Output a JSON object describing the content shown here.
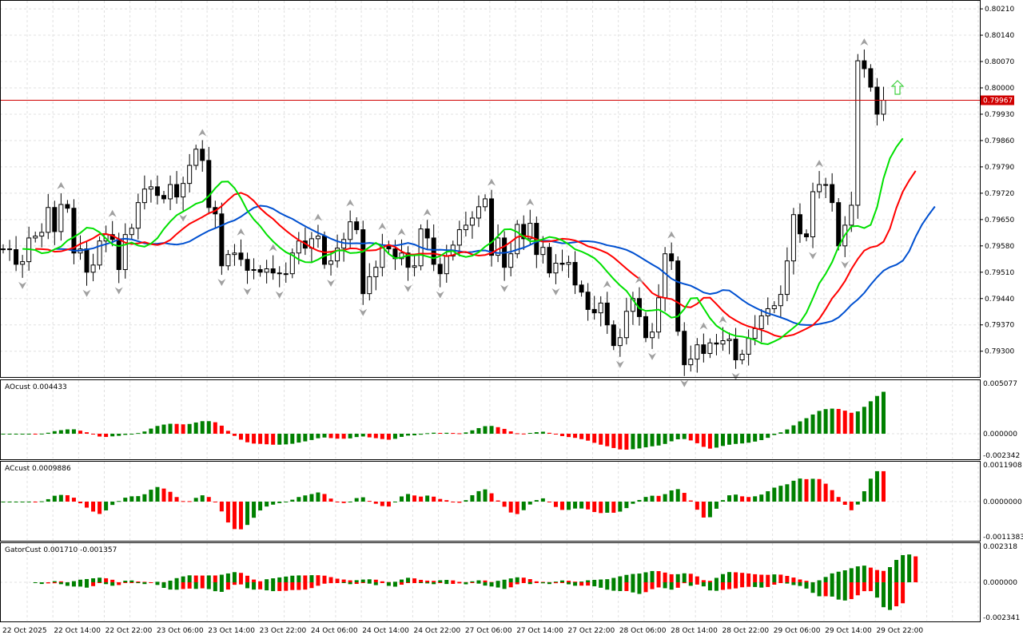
{
  "chart_data": {
    "type": "candlestick",
    "timeframe_bars": "hourly",
    "time_labels": [
      "22 Oct 2025",
      "22 Oct 14:00",
      "22 Oct 22:00",
      "23 Oct 06:00",
      "23 Oct 14:00",
      "23 Oct 22:00",
      "24 Oct 06:00",
      "24 Oct 14:00",
      "24 Oct 22:00",
      "27 Oct 06:00",
      "27 Oct 14:00",
      "27 Oct 22:00",
      "28 Oct 06:00",
      "28 Oct 14:00",
      "28 Oct 22:00",
      "29 Oct 06:00",
      "29 Oct 14:00",
      "29 Oct 22:00"
    ],
    "price_ticks": [
      "0.80210",
      "0.80140",
      "0.80070",
      "0.80000",
      "0.79930",
      "0.79860",
      "0.79790",
      "0.79720",
      "0.79650",
      "0.79580",
      "0.79510",
      "0.79440",
      "0.79370",
      "0.79300"
    ],
    "ylim": [
      0.7923,
      0.80232
    ],
    "grid": true,
    "current_price": "0.79967",
    "colors": {
      "up_bar": "#ffffff",
      "down_bar": "#000000",
      "lips": "#00e000",
      "teeth": "#ff0000",
      "jaw": "#0050d0",
      "bid_line": "#d00000",
      "ind_up": "#008000",
      "ind_down": "#ff0000",
      "grid": "#e0e0e0",
      "fractal": "#a0a0a0",
      "signal_arrow": "#40d040"
    },
    "close": [
      0.79572,
      0.7957,
      0.79531,
      0.79538,
      0.79601,
      0.79606,
      0.79616,
      0.79682,
      0.79618,
      0.7969,
      0.7968,
      0.79561,
      0.79572,
      0.7951,
      0.79529,
      0.79593,
      0.7961,
      0.79597,
      0.79517,
      0.7961,
      0.79627,
      0.79695,
      0.79731,
      0.79737,
      0.79714,
      0.79705,
      0.79743,
      0.7971,
      0.79746,
      0.79794,
      0.79837,
      0.79807,
      0.79682,
      0.79665,
      0.79527,
      0.79557,
      0.79561,
      0.79544,
      0.79515,
      0.79517,
      0.7951,
      0.79519,
      0.79508,
      0.79506,
      0.79506,
      0.79561,
      0.79593,
      0.79574,
      0.79599,
      0.79606,
      0.79531,
      0.7954,
      0.79574,
      0.79597,
      0.79644,
      0.79623,
      0.79453,
      0.79498,
      0.79523,
      0.79582,
      0.79572,
      0.79546,
      0.79561,
      0.79523,
      0.79527,
      0.79625,
      0.79601,
      0.79531,
      0.79506,
      0.79553,
      0.79582,
      0.79623,
      0.79635,
      0.79654,
      0.79684,
      0.79705,
      0.79555,
      0.79601,
      0.79523,
      0.79559,
      0.79637,
      0.79599,
      0.7964,
      0.79557,
      0.79576,
      0.79508,
      0.79534,
      0.79531,
      0.79536,
      0.79476,
      0.79457,
      0.79411,
      0.79402,
      0.79428,
      0.7937,
      0.79315,
      0.79336,
      0.79406,
      0.7944,
      0.79392,
      0.79336,
      0.79351,
      0.79442,
      0.79559,
      0.7954,
      0.79353,
      0.79264,
      0.79279,
      0.79317,
      0.79294,
      0.79322,
      0.79319,
      0.79328,
      0.79332,
      0.79277,
      0.79292,
      0.79334,
      0.7936,
      0.79394,
      0.79413,
      0.79421,
      0.79451,
      0.7954,
      0.79663,
      0.79612,
      0.79604,
      0.79724,
      0.79743,
      0.79743,
      0.79695,
      0.7958,
      0.79635,
      0.79688,
      0.80072,
      0.80051,
      0.80002,
      0.7993,
      0.79967
    ]
  },
  "indicators": {
    "ao": {
      "name": "AOcust",
      "value": "0.004433",
      "ticks": [
        "0.005077",
        "0.000000",
        "-0.002342"
      ],
      "ylim": [
        -0.002342,
        0.005077
      ]
    },
    "ac": {
      "name": "ACcust",
      "value": "0.0009886",
      "ticks": [
        "0.0011908",
        "0.0000000",
        "-0.0011383"
      ],
      "ylim": [
        -0.0011383,
        0.0011908
      ]
    },
    "gator": {
      "name": "GatorCust",
      "value": "0.001710 -0.001357",
      "ticks": [
        "0.002318",
        "0.000000",
        "-0.002341"
      ],
      "ylim": [
        -0.002341,
        0.002318
      ]
    }
  }
}
